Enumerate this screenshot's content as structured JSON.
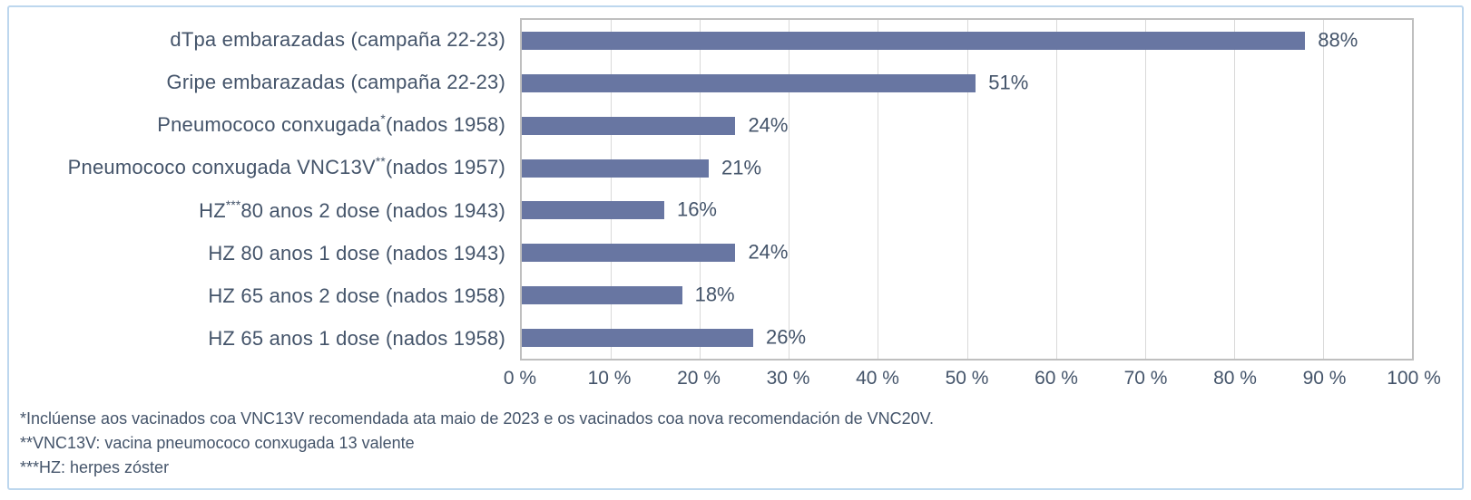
{
  "frame": {
    "background": "#FFFFFF",
    "border_color": "#BDD7EE"
  },
  "chart_data": {
    "type": "bar",
    "orientation": "horizontal",
    "title": "",
    "xlabel": "",
    "ylabel": "",
    "categories": [
      "dTpa embarazadas (campaña 22-23)",
      "Gripe embarazadas (campaña 22-23)",
      "Pneumococo conxugada* (nados 1958)",
      "Pneumococo conxugada VNC13V** (nados 1957)",
      "HZ*** 80 anos 2 dose (nados 1943)",
      "HZ 80 anos 1 dose (nados 1943)",
      "HZ 65 anos 2 dose (nados 1958)",
      "HZ 65 anos 1 dose (nados 1958)"
    ],
    "categories_rich": [
      [
        {
          "t": "dTpa embarazadas (campaña 22-23)"
        }
      ],
      [
        {
          "t": "Gripe embarazadas (campaña 22-23)"
        }
      ],
      [
        {
          "t": "Pneumococo conxugada"
        },
        {
          "t": "*",
          "sup": true
        },
        {
          "t": " (nados 1958)"
        }
      ],
      [
        {
          "t": "Pneumococo conxugada VNC13V"
        },
        {
          "t": "**",
          "sup": true
        },
        {
          "t": " (nados 1957)"
        }
      ],
      [
        {
          "t": "HZ"
        },
        {
          "t": "***",
          "sup": true
        },
        {
          "t": " 80 anos 2 dose (nados 1943)"
        }
      ],
      [
        {
          "t": "HZ 80 anos 1 dose (nados 1943)"
        }
      ],
      [
        {
          "t": "HZ 65 anos 2 dose (nados 1958)"
        }
      ],
      [
        {
          "t": "HZ 65 anos 1 dose (nados 1958)"
        }
      ]
    ],
    "values": [
      88,
      51,
      24,
      21,
      16,
      24,
      18,
      26
    ],
    "value_labels": [
      "88%",
      "51%",
      "24%",
      "21%",
      "16%",
      "24%",
      "18%",
      "26%"
    ],
    "x_ticks": [
      "0 %",
      "10 %",
      "20 %",
      "30 %",
      "40 %",
      "50 %",
      "60 %",
      "70 %",
      "80 %",
      "90 %",
      "100 %"
    ],
    "xlim": [
      0,
      100
    ],
    "grid": true,
    "legend": false,
    "bar_color": "#6876A2",
    "text_color": "#44546A",
    "grid_color": "#D9D9D9",
    "plot_border_color": "#BFBFBF"
  },
  "footnotes": [
    "*Inclúense aos vacinados coa VNC13V recomendada ata maio de 2023 e os vacinados coa nova recomendación de VNC20V.",
    "**VNC13V: vacina pneumococo conxugada 13 valente",
    "***HZ: herpes zóster"
  ]
}
